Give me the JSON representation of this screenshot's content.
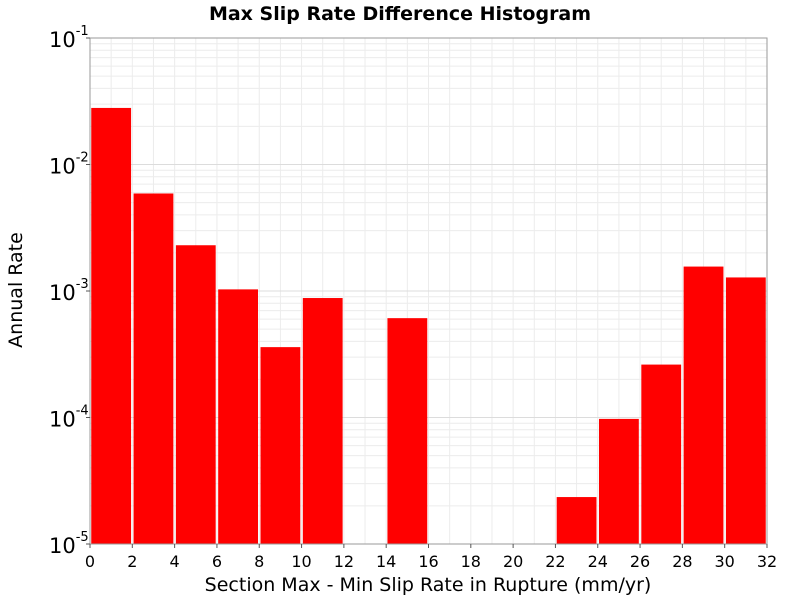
{
  "chart_data": {
    "type": "bar",
    "title": "Max Slip Rate Difference Histogram",
    "xlabel": "Section Max - Min Slip Rate in Rupture (mm/yr)",
    "ylabel": "Annual Rate",
    "x_scale": "linear",
    "y_scale": "log",
    "xlim": [
      0,
      32
    ],
    "ylim": [
      1e-05,
      0.1
    ],
    "x_ticks": [
      "0",
      "2",
      "4",
      "6",
      "8",
      "10",
      "12",
      "14",
      "16",
      "18",
      "20",
      "22",
      "24",
      "26",
      "28",
      "30",
      "32"
    ],
    "y_ticks": [
      {
        "base": "10",
        "exp": "-5"
      },
      {
        "base": "10",
        "exp": "-4"
      },
      {
        "base": "10",
        "exp": "-3"
      },
      {
        "base": "10",
        "exp": "-2"
      },
      {
        "base": "10",
        "exp": "-1"
      }
    ],
    "bar_width": 2,
    "bar_color": "#ff0000",
    "grid": true,
    "bars": [
      {
        "x": 1,
        "value": 0.028
      },
      {
        "x": 3,
        "value": 0.0059
      },
      {
        "x": 5,
        "value": 0.0023
      },
      {
        "x": 7,
        "value": 0.00103
      },
      {
        "x": 9,
        "value": 0.00036
      },
      {
        "x": 11,
        "value": 0.00088
      },
      {
        "x": 13,
        "value": 0
      },
      {
        "x": 15,
        "value": 0.00061
      },
      {
        "x": 17,
        "value": 0
      },
      {
        "x": 19,
        "value": 0
      },
      {
        "x": 21,
        "value": 0
      },
      {
        "x": 23,
        "value": 2.35e-05
      },
      {
        "x": 25,
        "value": 9.75e-05
      },
      {
        "x": 27,
        "value": 0.000262
      },
      {
        "x": 29,
        "value": 0.00156
      },
      {
        "x": 31,
        "value": 0.00128
      }
    ]
  }
}
